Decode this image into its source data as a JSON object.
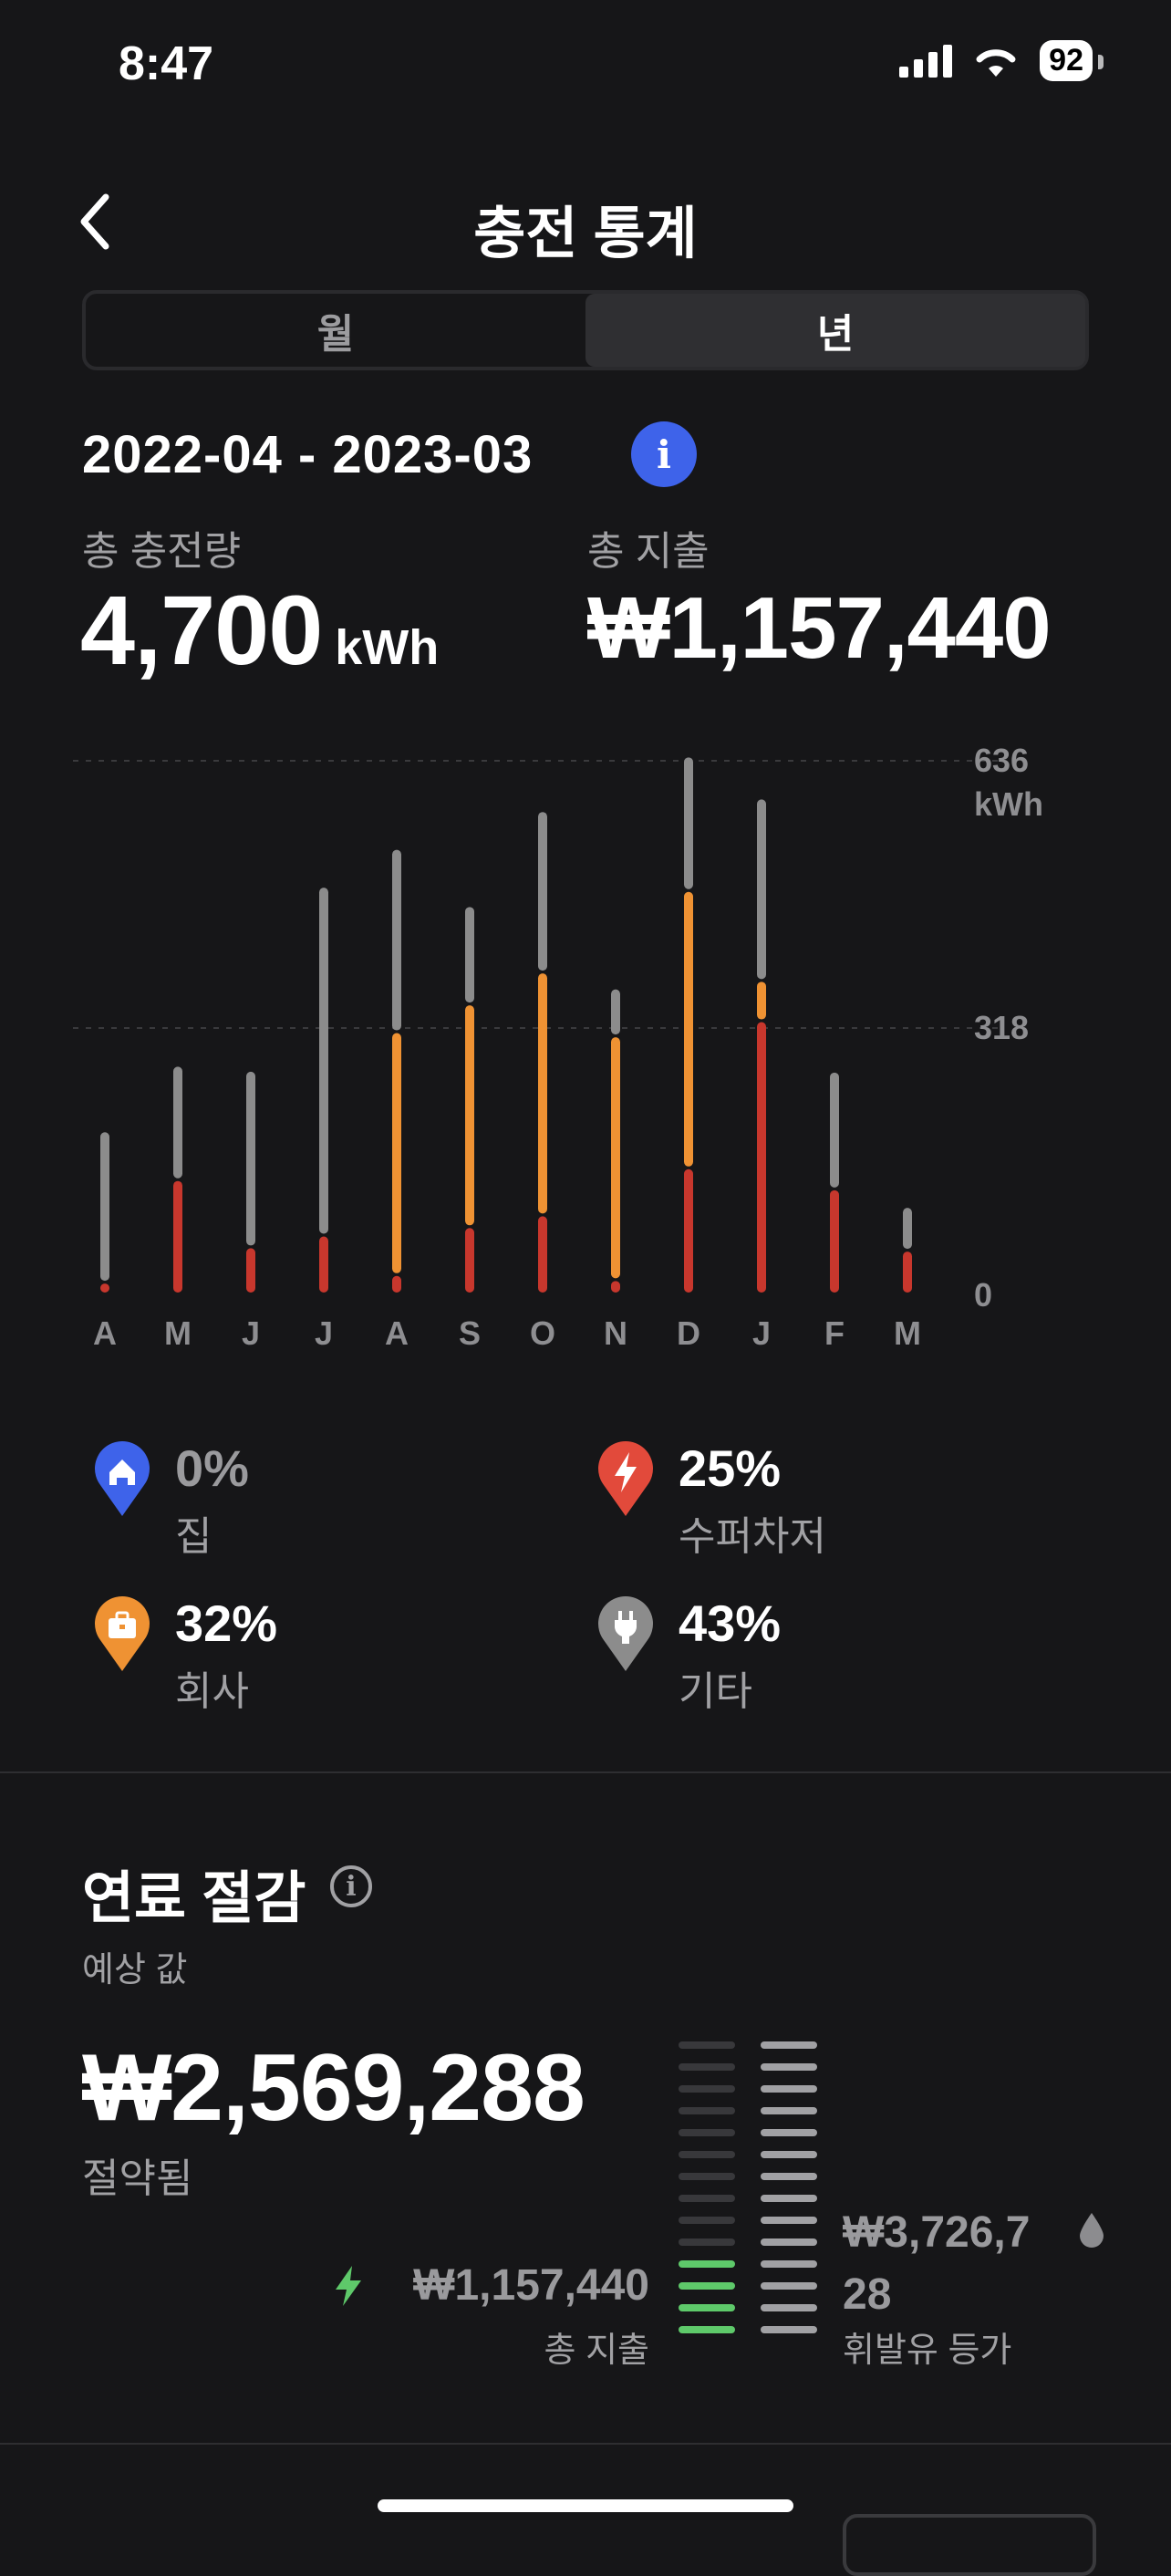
{
  "status": {
    "time": "8:47",
    "battery": "92"
  },
  "header": {
    "title": "충전 통계"
  },
  "segment": {
    "month": "월",
    "year": "년"
  },
  "period": {
    "range": "2022-04 - 2023-03",
    "info": "i"
  },
  "totals": {
    "charge_label": "총 충전량",
    "charge_value": "4,700",
    "charge_unit": "kWh",
    "spend_label": "총 지출",
    "spend_value": "₩1,157,440"
  },
  "chart_data": {
    "type": "bar",
    "stacked": true,
    "categories": [
      "A",
      "M",
      "J",
      "J",
      "A",
      "S",
      "O",
      "N",
      "D",
      "J",
      "F",
      "M"
    ],
    "series": [
      {
        "name": "수퍼차저",
        "color": "#c8372d",
        "values": [
          14,
          136,
          56,
          70,
          23,
          80,
          94,
          17,
          150,
          325,
          125,
          52
        ]
      },
      {
        "name": "회사",
        "color": "#ef9233",
        "values": [
          0,
          0,
          0,
          0,
          289,
          265,
          289,
          290,
          330,
          48,
          0,
          0
        ]
      },
      {
        "name": "기타",
        "color": "#8c8c8c",
        "values": [
          180,
          136,
          210,
          415,
          218,
          117,
          192,
          57,
          160,
          217,
          140,
          52
        ]
      }
    ],
    "yticks": [
      "636\nkWh",
      "318",
      "0"
    ],
    "ylim": [
      0,
      636
    ],
    "grid": true
  },
  "legend": [
    {
      "pct": "0%",
      "label": "집",
      "color": "#3e63ea",
      "icon": "home-icon"
    },
    {
      "pct": "25%",
      "label": "수퍼차저",
      "color": "#e24a3b",
      "icon": "bolt-icon"
    },
    {
      "pct": "32%",
      "label": "회사",
      "color": "#ef9233",
      "icon": "briefcase-icon"
    },
    {
      "pct": "43%",
      "label": "기타",
      "color": "#8c8c8c",
      "icon": "plug-icon"
    }
  ],
  "fuel": {
    "title": "연료 절감",
    "info": "i",
    "estimate": "예상 값",
    "saved_value": "₩2,569,288",
    "saved_label": "절약됨",
    "spent_value": "₩1,157,440",
    "spent_label": "총 지출",
    "gas_value_1": "₩3,726,7",
    "gas_value_2": "28",
    "gas_label": "휘발유 등가",
    "electric_fill_fraction": 0.31
  }
}
